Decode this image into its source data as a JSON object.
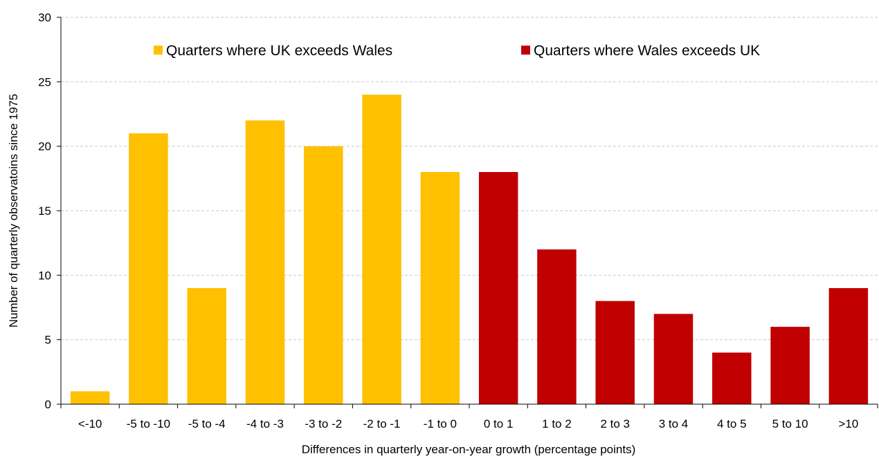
{
  "chart_data": {
    "type": "bar",
    "categories": [
      "<-10",
      "-5 to -10",
      "-5 to -4",
      "-4 to -3",
      "-3 to -2",
      "-2 to -1",
      "-1 to 0",
      "0 to 1",
      "1 to 2",
      "2 to 3",
      "3 to 4",
      "4 to 5",
      "5 to 10",
      ">10"
    ],
    "values": [
      1,
      21,
      9,
      22,
      20,
      24,
      18,
      18,
      12,
      8,
      7,
      4,
      6,
      9
    ],
    "groups": [
      "uk",
      "uk",
      "uk",
      "uk",
      "uk",
      "uk",
      "uk",
      "wales",
      "wales",
      "wales",
      "wales",
      "wales",
      "wales",
      "wales"
    ],
    "legend": [
      {
        "key": "uk",
        "name": "Quarters where UK exceeds Wales",
        "color": "#FFC000"
      },
      {
        "key": "wales",
        "name": "Quarters where Wales exceeds UK",
        "color": "#C00000"
      }
    ],
    "title": "",
    "xlabel": "Differences in quarterly year-on-year growth (percentage points)",
    "ylabel": "Number of quarterly observatoins since 1975",
    "ylim": [
      0,
      30
    ],
    "yticks": [
      0,
      5,
      10,
      15,
      20,
      25,
      30
    ],
    "grid": true,
    "legend_position": "top"
  }
}
